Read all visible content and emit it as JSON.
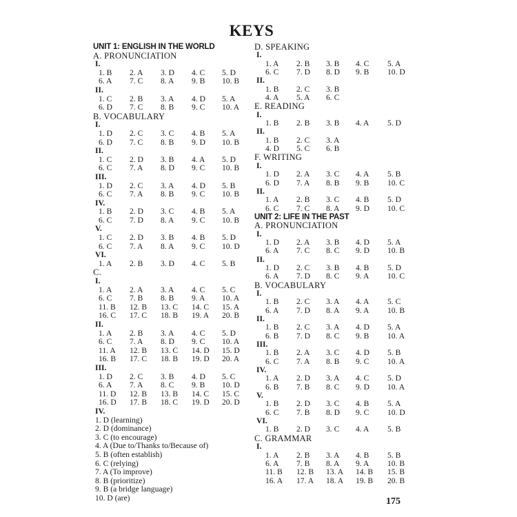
{
  "title": "KEYS",
  "page_number": "175",
  "columns": [
    {
      "lines": [
        {
          "kind": "unit",
          "text": "UNIT 1: ENGLISH IN THE WORLD"
        },
        {
          "kind": "section",
          "text": "A. PRONUNCIATION"
        },
        {
          "kind": "part",
          "text": "I."
        },
        {
          "kind": "row",
          "cells": [
            "1. B",
            "2. A",
            "3. D",
            "4. C",
            "5. D"
          ]
        },
        {
          "kind": "row",
          "cells": [
            "6. A",
            "7. C",
            "8. A",
            "9. B",
            "10. B"
          ]
        },
        {
          "kind": "part",
          "text": "II."
        },
        {
          "kind": "row",
          "cells": [
            "1. C",
            "2. B",
            "3. A",
            "4. D",
            "5. A"
          ]
        },
        {
          "kind": "row",
          "cells": [
            "6. D",
            "7. C",
            "8. B",
            "9. C",
            "10. A"
          ]
        },
        {
          "kind": "section",
          "text": "B. VOCABULARY"
        },
        {
          "kind": "part",
          "text": "I."
        },
        {
          "kind": "row",
          "cells": [
            "1. D",
            "2. C",
            "3. C",
            "4. B",
            "5. A"
          ]
        },
        {
          "kind": "row",
          "cells": [
            "6. D",
            "7. C",
            "8. B",
            "9. D",
            "10. B"
          ]
        },
        {
          "kind": "part",
          "text": "II."
        },
        {
          "kind": "row",
          "cells": [
            "1. C",
            "2. D",
            "3. B",
            "4. A",
            "5. D"
          ]
        },
        {
          "kind": "row",
          "cells": [
            "6. C",
            "7. A",
            "8. D",
            "9. C",
            "10. B"
          ]
        },
        {
          "kind": "part",
          "text": "III."
        },
        {
          "kind": "row",
          "cells": [
            "1. D",
            "2. C",
            "3. A",
            "4. D",
            "5. B"
          ]
        },
        {
          "kind": "row",
          "cells": [
            "6. C",
            "7. A",
            "8. B",
            "9. C",
            "10. B"
          ]
        },
        {
          "kind": "part",
          "text": "IV."
        },
        {
          "kind": "row",
          "cells": [
            "1. B",
            "2. D",
            "3. C",
            "4. B",
            "5. A"
          ]
        },
        {
          "kind": "row",
          "cells": [
            "6. C",
            "7. D",
            "8. A",
            "9. C",
            "10. B"
          ]
        },
        {
          "kind": "part",
          "text": "V."
        },
        {
          "kind": "row",
          "cells": [
            "1. C",
            "2. D",
            "3. B",
            "4. B",
            "5. D"
          ]
        },
        {
          "kind": "row",
          "cells": [
            "6. C",
            "7. A",
            "8. A",
            "9. C",
            "10. D"
          ]
        },
        {
          "kind": "part",
          "text": "VI."
        },
        {
          "kind": "row",
          "cells": [
            "1. A",
            "2. B",
            "3. D",
            "4. C",
            "5. B"
          ]
        },
        {
          "kind": "section",
          "text": "C."
        },
        {
          "kind": "part",
          "text": "I."
        },
        {
          "kind": "row",
          "cells": [
            "1. A",
            "2. A",
            "3. A",
            "4. C",
            "5. C"
          ]
        },
        {
          "kind": "row",
          "cells": [
            "6. C",
            "7. B",
            "8. B",
            "9. A",
            "10. A"
          ]
        },
        {
          "kind": "row",
          "cells": [
            "11. B",
            "12. B",
            "13. C",
            "14. C",
            "15. A"
          ]
        },
        {
          "kind": "row",
          "cells": [
            "16. C",
            "17. C",
            "18. B",
            "19. A",
            "20. B"
          ]
        },
        {
          "kind": "part",
          "text": "II."
        },
        {
          "kind": "row",
          "cells": [
            "1. A",
            "2. B",
            "3. A",
            "4. C",
            "5. D"
          ]
        },
        {
          "kind": "row",
          "cells": [
            "6. C",
            "7. A",
            "8. D",
            "9. C",
            "10. A"
          ]
        },
        {
          "kind": "row",
          "cells": [
            "11. A",
            "12. B",
            "13. C",
            "14. D",
            "15. D"
          ]
        },
        {
          "kind": "row",
          "cells": [
            "16. B",
            "17. C",
            "18. B",
            "19. D",
            "20. A"
          ]
        },
        {
          "kind": "part",
          "text": "III."
        },
        {
          "kind": "row",
          "cells": [
            "1. D",
            "2. C",
            "3. B",
            "4. D",
            "5. C"
          ]
        },
        {
          "kind": "row",
          "cells": [
            "6. A",
            "7. A",
            "8. C",
            "9. B",
            "10. D"
          ]
        },
        {
          "kind": "row",
          "cells": [
            "11. D",
            "12. B",
            "13. B",
            "14. C",
            "15. C"
          ]
        },
        {
          "kind": "row",
          "cells": [
            "16. D",
            "17. B",
            "18. C",
            "19. D",
            "20. D"
          ]
        },
        {
          "kind": "part",
          "text": "IV."
        },
        {
          "kind": "free",
          "text": "1. D (learning)"
        },
        {
          "kind": "free",
          "text": "2. D (dominance)"
        },
        {
          "kind": "free",
          "text": "3. C (to encourage)"
        },
        {
          "kind": "free",
          "text": "4. A (Due to/Thanks to/Because of)"
        },
        {
          "kind": "free",
          "text": "5. B (often establish)"
        },
        {
          "kind": "free",
          "text": "6. C (relying)"
        },
        {
          "kind": "free",
          "text": "7. A (To improve)"
        },
        {
          "kind": "free",
          "text": "8. B (prioritize)"
        },
        {
          "kind": "free",
          "text": "9. B (a bridge language)"
        },
        {
          "kind": "free",
          "text": "10. D (are)"
        }
      ]
    },
    {
      "lines": [
        {
          "kind": "section",
          "text": "D. SPEAKING"
        },
        {
          "kind": "part",
          "text": "I."
        },
        {
          "kind": "row",
          "cells": [
            "1. A",
            "2. B",
            "3. B",
            "4. C",
            "5. A"
          ]
        },
        {
          "kind": "row",
          "cells": [
            "6. C",
            "7. D",
            "8. D",
            "9. B",
            "10. D"
          ]
        },
        {
          "kind": "part",
          "text": "II."
        },
        {
          "kind": "row",
          "cells": [
            "1. B",
            "2. C",
            "3. B"
          ]
        },
        {
          "kind": "row",
          "cells": [
            "4. A",
            "5. A",
            "6. C"
          ]
        },
        {
          "kind": "section",
          "text": "E. READING"
        },
        {
          "kind": "part",
          "text": "I."
        },
        {
          "kind": "row",
          "cells": [
            "1. B",
            "2. B",
            "3. B",
            "4. A",
            "5. D"
          ]
        },
        {
          "kind": "part",
          "text": "II."
        },
        {
          "kind": "row",
          "cells": [
            "1. B",
            "2. C",
            "3. A"
          ]
        },
        {
          "kind": "row",
          "cells": [
            "4. D",
            "5. C",
            "6. B"
          ]
        },
        {
          "kind": "section",
          "text": "F. WRITING"
        },
        {
          "kind": "part",
          "text": "I."
        },
        {
          "kind": "row",
          "cells": [
            "1. D",
            "2. A",
            "3. C",
            "4. A",
            "5. B"
          ]
        },
        {
          "kind": "row",
          "cells": [
            "6. D",
            "7. A",
            "8. B",
            "9. B",
            "10. C"
          ]
        },
        {
          "kind": "part",
          "text": "II."
        },
        {
          "kind": "row",
          "cells": [
            "1. A",
            "2. B",
            "3. C",
            "4. B",
            "5. D"
          ]
        },
        {
          "kind": "row",
          "cells": [
            "6. C",
            "7. C",
            "8. A",
            "9. D",
            "10. C"
          ]
        },
        {
          "kind": "unit",
          "text": "UNIT 2: LIFE IN THE PAST"
        },
        {
          "kind": "section",
          "text": "A. PRONUNCIATION"
        },
        {
          "kind": "part",
          "text": "I."
        },
        {
          "kind": "row",
          "cells": [
            "1. D",
            "2. A",
            "3. B",
            "4. D",
            "5. A"
          ]
        },
        {
          "kind": "row",
          "cells": [
            "6. A",
            "7. C",
            "8. C",
            "9. D",
            "10. B"
          ]
        },
        {
          "kind": "part",
          "text": "II."
        },
        {
          "kind": "row",
          "cells": [
            "1. D",
            "2. C",
            "3. B",
            "4. B",
            "5. D"
          ]
        },
        {
          "kind": "row",
          "cells": [
            "6. A",
            "7. D",
            "8. C",
            "9. A",
            "10. C"
          ]
        },
        {
          "kind": "section",
          "text": "B. VOCABULARY"
        },
        {
          "kind": "part",
          "text": "I."
        },
        {
          "kind": "row",
          "cells": [
            "1. B",
            "2. C",
            "3. A",
            "4. A",
            "5. C"
          ]
        },
        {
          "kind": "row",
          "cells": [
            "6. A",
            "7. D",
            "8. A",
            "9. A",
            "10. B"
          ]
        },
        {
          "kind": "part",
          "text": "II."
        },
        {
          "kind": "row",
          "cells": [
            "1. B",
            "2. C",
            "3. A",
            "4. D",
            "5. A"
          ]
        },
        {
          "kind": "row",
          "cells": [
            "6. B",
            "7. D",
            "8. C",
            "9. B",
            "10. A"
          ]
        },
        {
          "kind": "part",
          "text": "III."
        },
        {
          "kind": "row",
          "cells": [
            "1. B",
            "2. A",
            "3. C",
            "4. D",
            "5. B"
          ]
        },
        {
          "kind": "row",
          "cells": [
            "6. C",
            "7. A",
            "8. B",
            "9. C",
            "10. A"
          ]
        },
        {
          "kind": "part",
          "text": "IV."
        },
        {
          "kind": "row",
          "cells": [
            "1. A",
            "2. D",
            "3. A",
            "4. C",
            "5. D"
          ]
        },
        {
          "kind": "row",
          "cells": [
            "6. B",
            "7. B",
            "8. C",
            "9. D",
            "10. A"
          ]
        },
        {
          "kind": "part",
          "text": "V."
        },
        {
          "kind": "row",
          "cells": [
            "1. B",
            "2. D",
            "3. C",
            "4. B",
            "5. A"
          ]
        },
        {
          "kind": "row",
          "cells": [
            "6. C",
            "7. B",
            "8. D",
            "9. C",
            "10. D"
          ]
        },
        {
          "kind": "part",
          "text": "VI."
        },
        {
          "kind": "row",
          "cells": [
            "1. B",
            "2. D",
            "3. C",
            "4. A",
            "5. B"
          ]
        },
        {
          "kind": "section",
          "text": "C. GRAMMAR"
        },
        {
          "kind": "part",
          "text": "I."
        },
        {
          "kind": "row",
          "cells": [
            "1. A",
            "2. B",
            "3. A",
            "4. B",
            "5. B"
          ]
        },
        {
          "kind": "row",
          "cells": [
            "6. A",
            "7. B",
            "8. A",
            "9. A",
            "10. B"
          ]
        },
        {
          "kind": "row",
          "cells": [
            "11. B",
            "12. B",
            "13. A",
            "14. B",
            "15. B"
          ]
        },
        {
          "kind": "row",
          "cells": [
            "16. A",
            "17. A",
            "18. A",
            "19. B",
            "20. B"
          ]
        }
      ]
    }
  ]
}
